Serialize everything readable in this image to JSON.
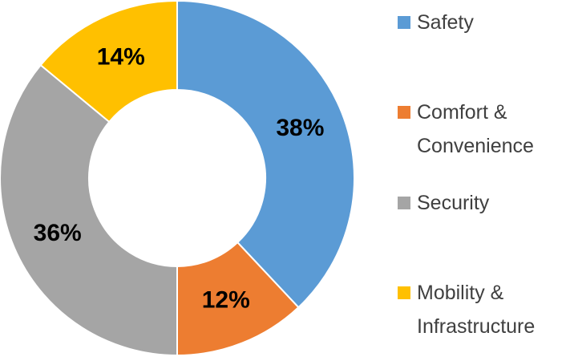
{
  "chart_data": {
    "type": "pie",
    "categories": [
      "Safety",
      "Comfort & Convenience",
      "Security",
      "Mobility & Infrastructure"
    ],
    "values": [
      38,
      12,
      36,
      14
    ],
    "value_labels": [
      "38%",
      "12%",
      "36%",
      "14%"
    ],
    "colors": [
      "#5b9bd5",
      "#ed7d31",
      "#a5a5a5",
      "#ffc000"
    ],
    "legend": "right"
  }
}
